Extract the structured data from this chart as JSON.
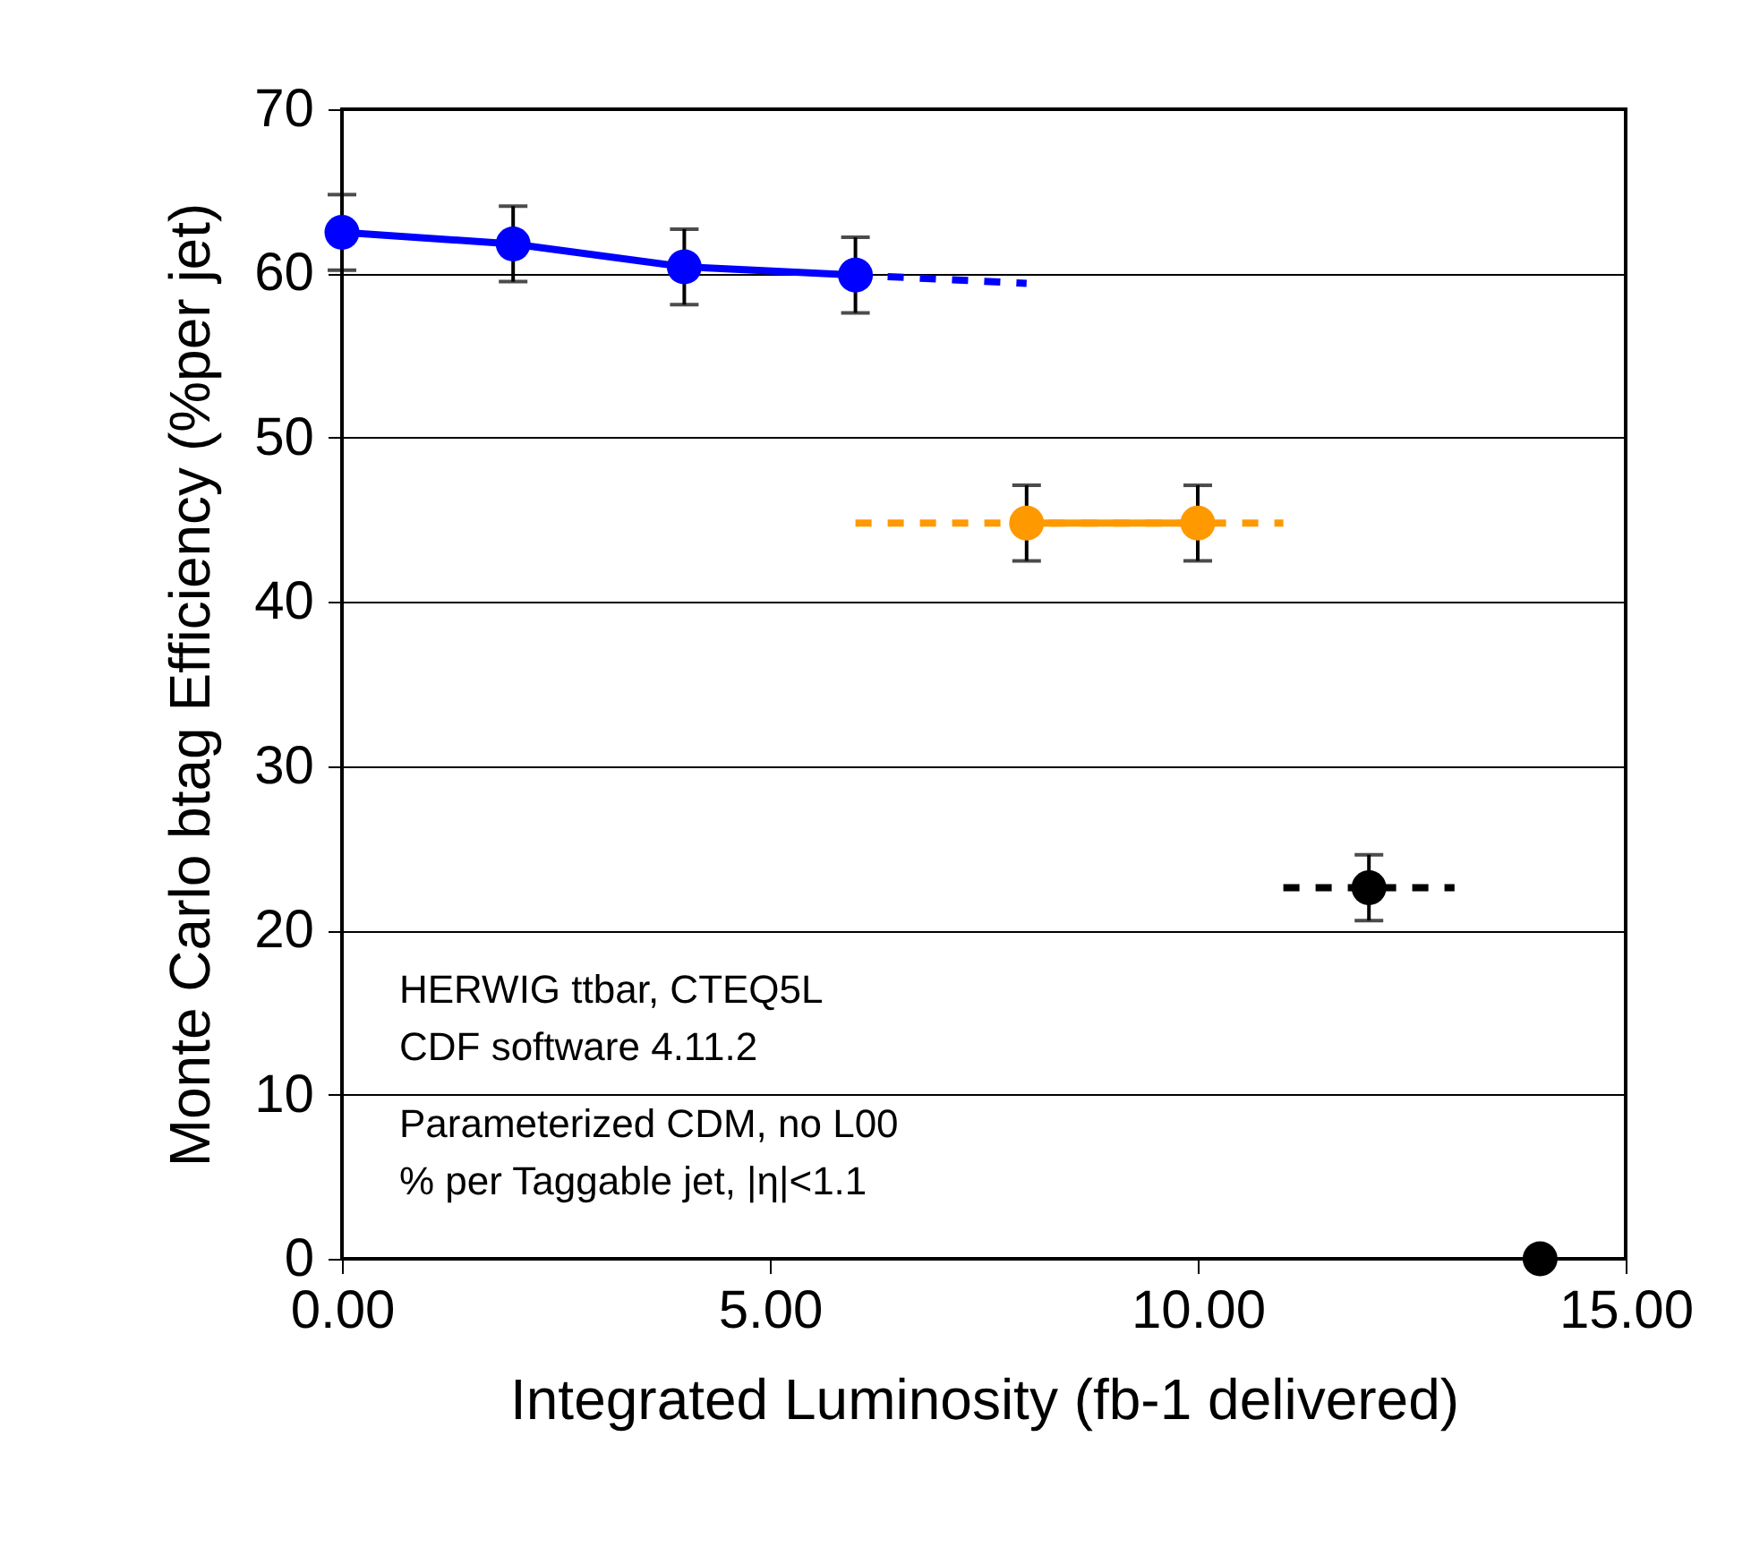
{
  "chart_data": {
    "type": "line",
    "xlabel": "Integrated Luminosity (fb-1 delivered)",
    "ylabel": "Monte Carlo btag Efficiency (%per jet)",
    "xlim": [
      0,
      15
    ],
    "xticks": [
      {
        "value": 0,
        "label": "0.00"
      },
      {
        "value": 5,
        "label": "5.00"
      },
      {
        "value": 10,
        "label": "10.00"
      },
      {
        "value": 15,
        "label": "15.00"
      }
    ],
    "ylim": [
      0,
      70
    ],
    "yticks": [
      0,
      10,
      20,
      30,
      40,
      50,
      60,
      70
    ],
    "grid": "y",
    "series": [
      {
        "color": "#0000ff",
        "line_style": "dashed",
        "x": [
          6,
          8
        ],
        "values": [
          59.9,
          59.4
        ]
      },
      {
        "color": "#ff9900",
        "line_style": "dashed",
        "x": [
          6,
          11
        ],
        "values": [
          44.8,
          44.8
        ]
      },
      {
        "color": "#000000",
        "line_style": "dashed",
        "x": [
          11,
          13
        ],
        "values": [
          22.6,
          22.6
        ]
      },
      {
        "color": "#0000ff",
        "marker": "circle",
        "line_style": "solid",
        "x": [
          0,
          2,
          4,
          6
        ],
        "values": [
          62.5,
          61.8,
          60.4,
          59.9
        ],
        "errors": [
          2.3,
          2.3,
          2.3,
          2.3
        ]
      },
      {
        "color": "#ff9900",
        "marker": "circle",
        "line_style": "solid",
        "x": [
          8,
          10
        ],
        "values": [
          44.8,
          44.8
        ],
        "errors": [
          2.3,
          2.3
        ]
      },
      {
        "type": "scatter",
        "color": "#000000",
        "marker": "circle",
        "x": [
          12,
          14
        ],
        "values": [
          22.6,
          0
        ],
        "errors": [
          2,
          null
        ]
      }
    ],
    "annotations": [
      "HERWIG ttbar, CTEQ5L",
      "CDF software 4.11.2",
      "Parameterized CDM, no L00",
      "% per Taggable jet, |η|<1.1"
    ]
  }
}
